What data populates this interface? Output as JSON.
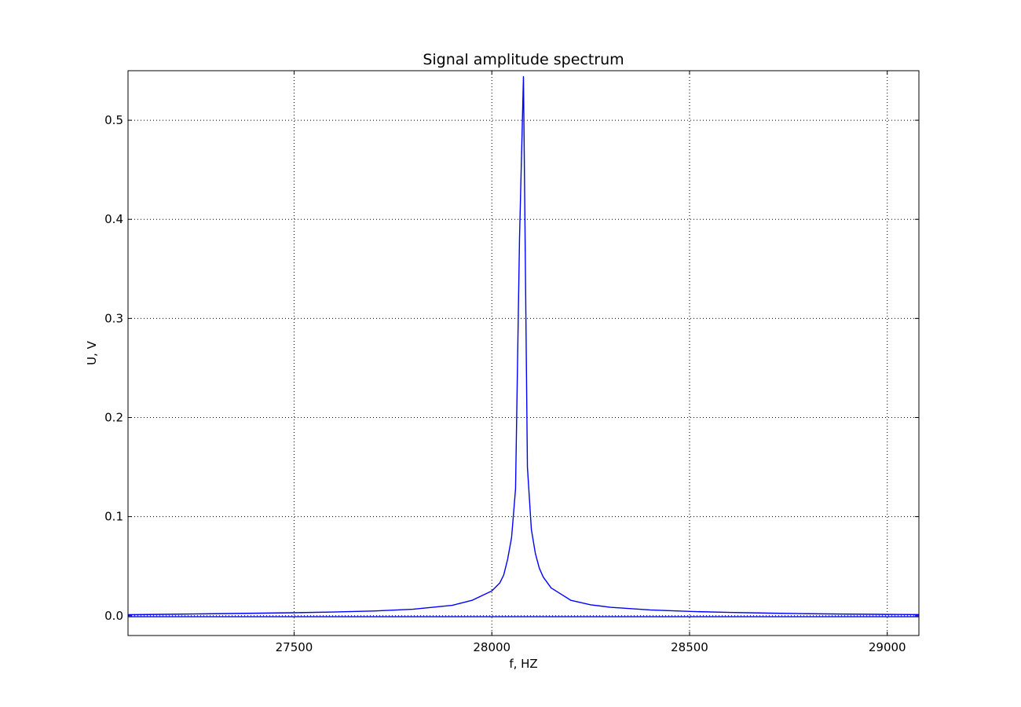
{
  "chart_data": {
    "type": "line",
    "title": "Signal amplitude spectrum",
    "xlabel": "f, HZ",
    "ylabel": "U, V",
    "xlim": [
      27080,
      29080
    ],
    "ylim": [
      -0.02,
      0.55
    ],
    "xticks": [
      27500,
      28000,
      28500,
      29000
    ],
    "xtick_labels": [
      "27500",
      "28000",
      "28500",
      "29000"
    ],
    "yticks": [
      0.0,
      0.1,
      0.2,
      0.3,
      0.4,
      0.5
    ],
    "ytick_labels": [
      "0.0",
      "0.1",
      "0.2",
      "0.3",
      "0.4",
      "0.5"
    ],
    "grid": true,
    "legend": "none",
    "series_color": "#0000ff",
    "series": [
      {
        "x": [
          27080,
          27200,
          27300,
          27400,
          27500,
          27600,
          27700,
          27800,
          27900,
          27950,
          28000,
          28020,
          28030,
          28040,
          28050,
          28060,
          28070,
          28080,
          28090,
          28100,
          28110,
          28120,
          28130,
          28150,
          28200,
          28250,
          28300,
          28400,
          28500,
          28600,
          28700,
          28800,
          28900,
          29000,
          29080
        ],
        "y": [
          0.001,
          0.0015,
          0.002,
          0.0025,
          0.003,
          0.0037,
          0.0047,
          0.0065,
          0.0105,
          0.0155,
          0.025,
          0.033,
          0.041,
          0.057,
          0.079,
          0.128,
          0.38,
          0.544,
          0.15,
          0.087,
          0.063,
          0.048,
          0.039,
          0.028,
          0.0155,
          0.011,
          0.0085,
          0.0058,
          0.0043,
          0.0033,
          0.0026,
          0.002,
          0.0016,
          0.0013,
          0.0011
        ]
      },
      {
        "x": [
          27080,
          29080
        ],
        "y": [
          -0.001,
          -0.001
        ]
      }
    ]
  }
}
